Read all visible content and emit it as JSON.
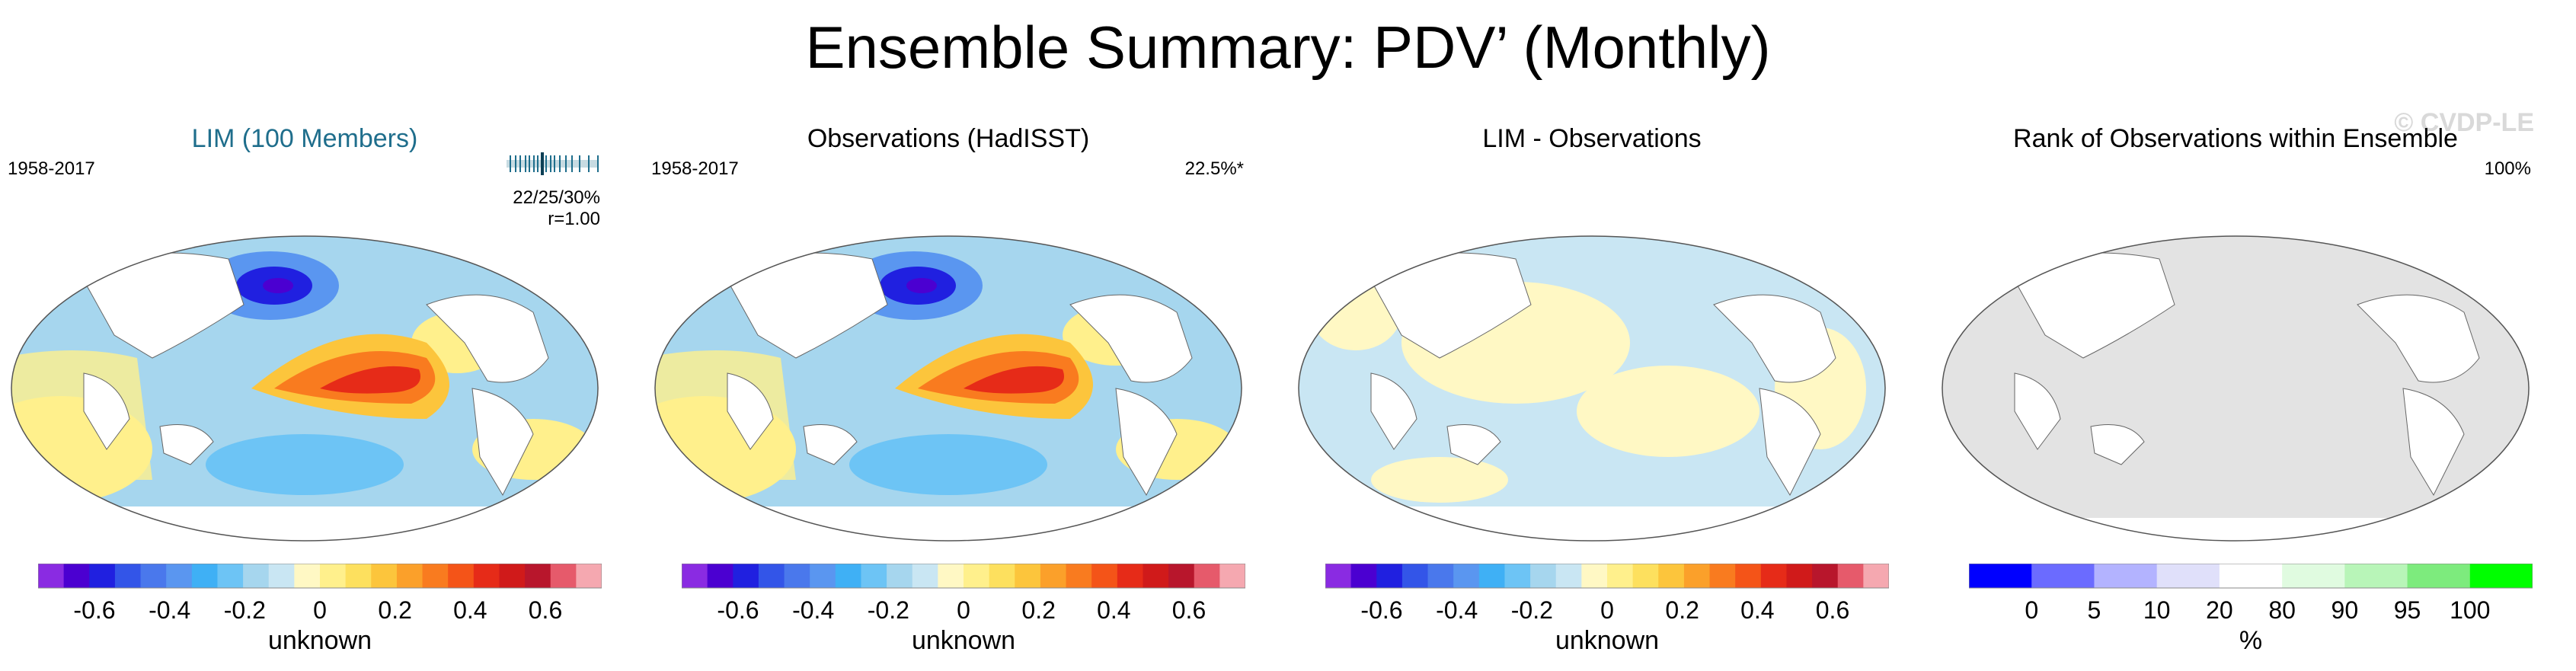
{
  "title": "Ensemble Summary: PDV’ (Monthly)",
  "watermark": "© CVDP-LE",
  "panels": [
    {
      "title": "LIM (100 Members)",
      "period": "1958-2017",
      "stats_line1": "22/25/30%",
      "stats_line2": "r=1.00",
      "colorbar": {
        "ticks": [
          "-0.6",
          "-0.4",
          "-0.2",
          "0",
          "0.2",
          "0.4",
          "0.6"
        ],
        "label": "unknown"
      }
    },
    {
      "title": "Observations (HadISST)",
      "period": "1958-2017",
      "right_note": "22.5%*",
      "colorbar": {
        "ticks": [
          "-0.6",
          "-0.4",
          "-0.2",
          "0",
          "0.2",
          "0.4",
          "0.6"
        ],
        "label": "unknown"
      }
    },
    {
      "title": "LIM - Observations",
      "colorbar": {
        "ticks": [
          "-0.6",
          "-0.4",
          "-0.2",
          "0",
          "0.2",
          "0.4",
          "0.6"
        ],
        "label": "unknown"
      }
    },
    {
      "title": "Rank of Observations within Ensemble",
      "right_note": "100%",
      "colorbar": {
        "ticks": [
          "0",
          "5",
          "10",
          "20",
          "80",
          "90",
          "95",
          "100"
        ],
        "label": "%"
      }
    }
  ],
  "colors": {
    "diverging": [
      "#8a2be2",
      "#4b00d1",
      "#2020e0",
      "#3355e8",
      "#4a78ec",
      "#5a96f0",
      "#3fb0f5",
      "#6dc4f5",
      "#a6d6ee",
      "#c9e6f3",
      "#fff8c4",
      "#fff08c",
      "#fde05e",
      "#fcc53c",
      "#fba02a",
      "#f97b1f",
      "#f45418",
      "#e62b18",
      "#d01a1a",
      "#b8162c",
      "#e65a6b",
      "#f5a8b0"
    ],
    "rank": [
      "#0000ff",
      "#6b6bff",
      "#b3b3ff",
      "#e0e0fa",
      "#ffffff",
      "#e0fbe0",
      "#b8f5b8",
      "#7deb7d",
      "#00ff00"
    ],
    "land": "#ffffff",
    "rank_gray": "#e3e3e3"
  }
}
